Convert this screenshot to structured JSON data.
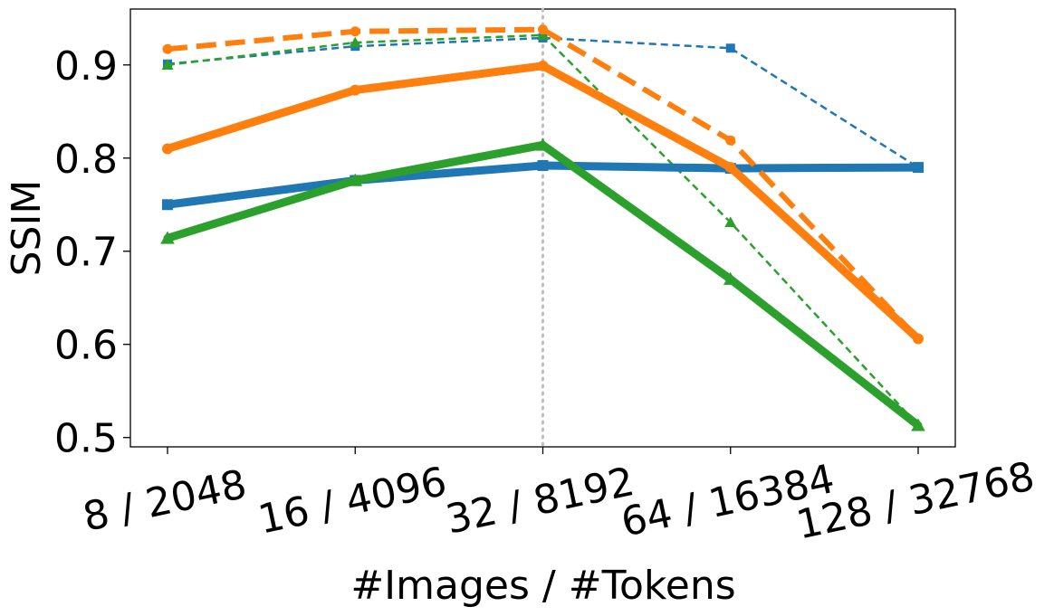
{
  "chart_data": {
    "type": "line",
    "xlabel": "#Images / #Tokens",
    "ylabel": "SSIM",
    "categories": [
      "8 / 2048",
      "16 / 4096",
      "32 / 8192",
      "64 / 16384",
      "128 / 32768"
    ],
    "ylim": [
      0.49,
      0.96
    ],
    "yticks": [
      "0.5",
      "0.6",
      "0.7",
      "0.8",
      "0.9"
    ],
    "grid": false,
    "legend": "none",
    "reference_line": {
      "category": "32 / 8192",
      "style": "dotted",
      "color": "#c0c0c0"
    },
    "series": [
      {
        "color": "#1f77b4",
        "style": "solid",
        "width": "thick",
        "marker": "square",
        "values": [
          0.75,
          0.776,
          0.792,
          0.789,
          0.79
        ]
      },
      {
        "color": "#ff7f0e",
        "style": "solid",
        "width": "thick",
        "marker": "circle",
        "values": [
          0.81,
          0.873,
          0.899,
          0.79,
          0.606
        ]
      },
      {
        "color": "#2ca02c",
        "style": "solid",
        "width": "thick",
        "marker": "triangle",
        "values": [
          0.714,
          0.776,
          0.814,
          0.67,
          0.513
        ]
      },
      {
        "color": "#1f77b4",
        "style": "dashed",
        "width": "thin",
        "marker": "square",
        "values": [
          0.901,
          0.92,
          0.929,
          0.918,
          0.79
        ]
      },
      {
        "color": "#ff7f0e",
        "style": "dashed",
        "width": "medium",
        "marker": "circle",
        "values": [
          0.917,
          0.936,
          0.938,
          0.819,
          0.606
        ]
      },
      {
        "color": "#2ca02c",
        "style": "dashed",
        "width": "thin",
        "marker": "triangle",
        "values": [
          0.9,
          0.924,
          0.932,
          0.731,
          0.513
        ]
      }
    ]
  }
}
